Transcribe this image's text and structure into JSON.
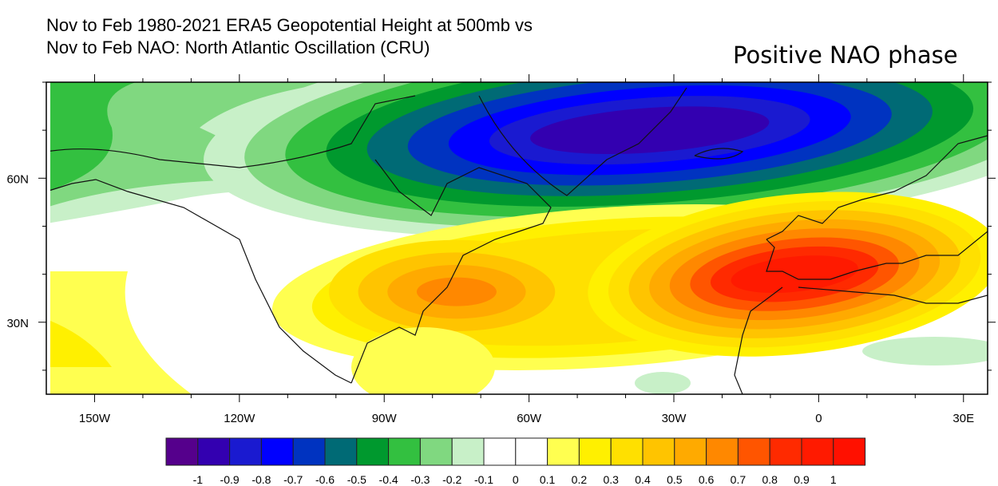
{
  "title_line1": "Nov to Feb 1980-2021 ERA5 Geopotential Height at 500mb vs",
  "title_line2": "Nov to Feb NAO: North Atlantic Oscillation (CRU)",
  "annotation": "Positive NAO phase",
  "map": {
    "lon_range": [
      -160,
      35
    ],
    "lat_range": [
      15,
      80
    ],
    "lon_ticks": [
      {
        "lon": -150,
        "label": "150W"
      },
      {
        "lon": -120,
        "label": "120W"
      },
      {
        "lon": -90,
        "label": "90W"
      },
      {
        "lon": -60,
        "label": "60W"
      },
      {
        "lon": -30,
        "label": "30W"
      },
      {
        "lon": 0,
        "label": "0"
      },
      {
        "lon": 30,
        "label": "30E"
      }
    ],
    "lat_ticks": [
      {
        "lat": 60,
        "label": "60N"
      },
      {
        "lat": 30,
        "label": "30N"
      }
    ],
    "negative_center": {
      "lon": -35,
      "lat": 70,
      "min": -0.9
    },
    "positive_centers": [
      {
        "lon": -5,
        "lat": 40,
        "max": 0.9
      },
      {
        "lon": -75,
        "lat": 38,
        "max": 0.6
      }
    ]
  },
  "colorbar": {
    "labels": [
      "-1",
      "-0.9",
      "-0.8",
      "-0.7",
      "-0.6",
      "-0.5",
      "-0.4",
      "-0.3",
      "-0.2",
      "-0.1",
      "0",
      "0.1",
      "0.2",
      "0.3",
      "0.4",
      "0.5",
      "0.6",
      "0.7",
      "0.8",
      "0.9",
      "1"
    ],
    "colors": [
      "#55008c",
      "#3300b0",
      "#1a1ad0",
      "#0000ff",
      "#0033c0",
      "#006a75",
      "#00992e",
      "#33c040",
      "#80d880",
      "#c8f0c8",
      "#ffffff",
      "#ffffff",
      "#ffff50",
      "#fff000",
      "#ffe000",
      "#ffc400",
      "#ffaa00",
      "#ff8800",
      "#ff5500",
      "#ff2a00",
      "#ff1a00",
      "#ff1000"
    ]
  }
}
